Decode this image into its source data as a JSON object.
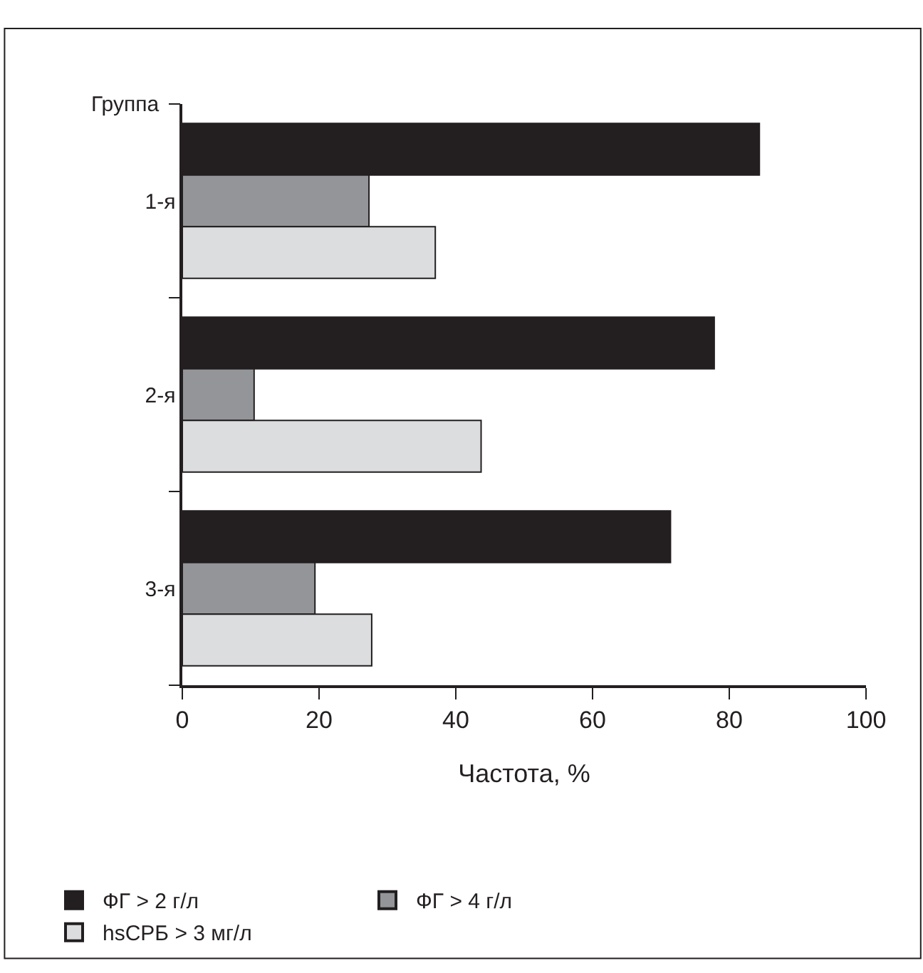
{
  "chart_data": {
    "type": "bar",
    "orientation": "horizontal",
    "categories": [
      "1-я",
      "2-я",
      "3-я"
    ],
    "xlabel": "Частота, %",
    "ylabel": "Группа",
    "xlim": [
      0,
      100
    ],
    "xticks": [
      0,
      20,
      40,
      60,
      80,
      100
    ],
    "series": [
      {
        "name": "ФГ > 2 г/л",
        "color": "#231f20",
        "values": [
          84.4,
          77.8,
          71.4
        ]
      },
      {
        "name": "ФГ > 4 г/л",
        "color": "#939598",
        "values": [
          27.3,
          10.5,
          19.4
        ]
      },
      {
        "name": "hsСРБ > 3 мг/л",
        "color": "#dcddde",
        "values": [
          37,
          43.7,
          27.7
        ]
      }
    ],
    "legend": "bottom"
  }
}
